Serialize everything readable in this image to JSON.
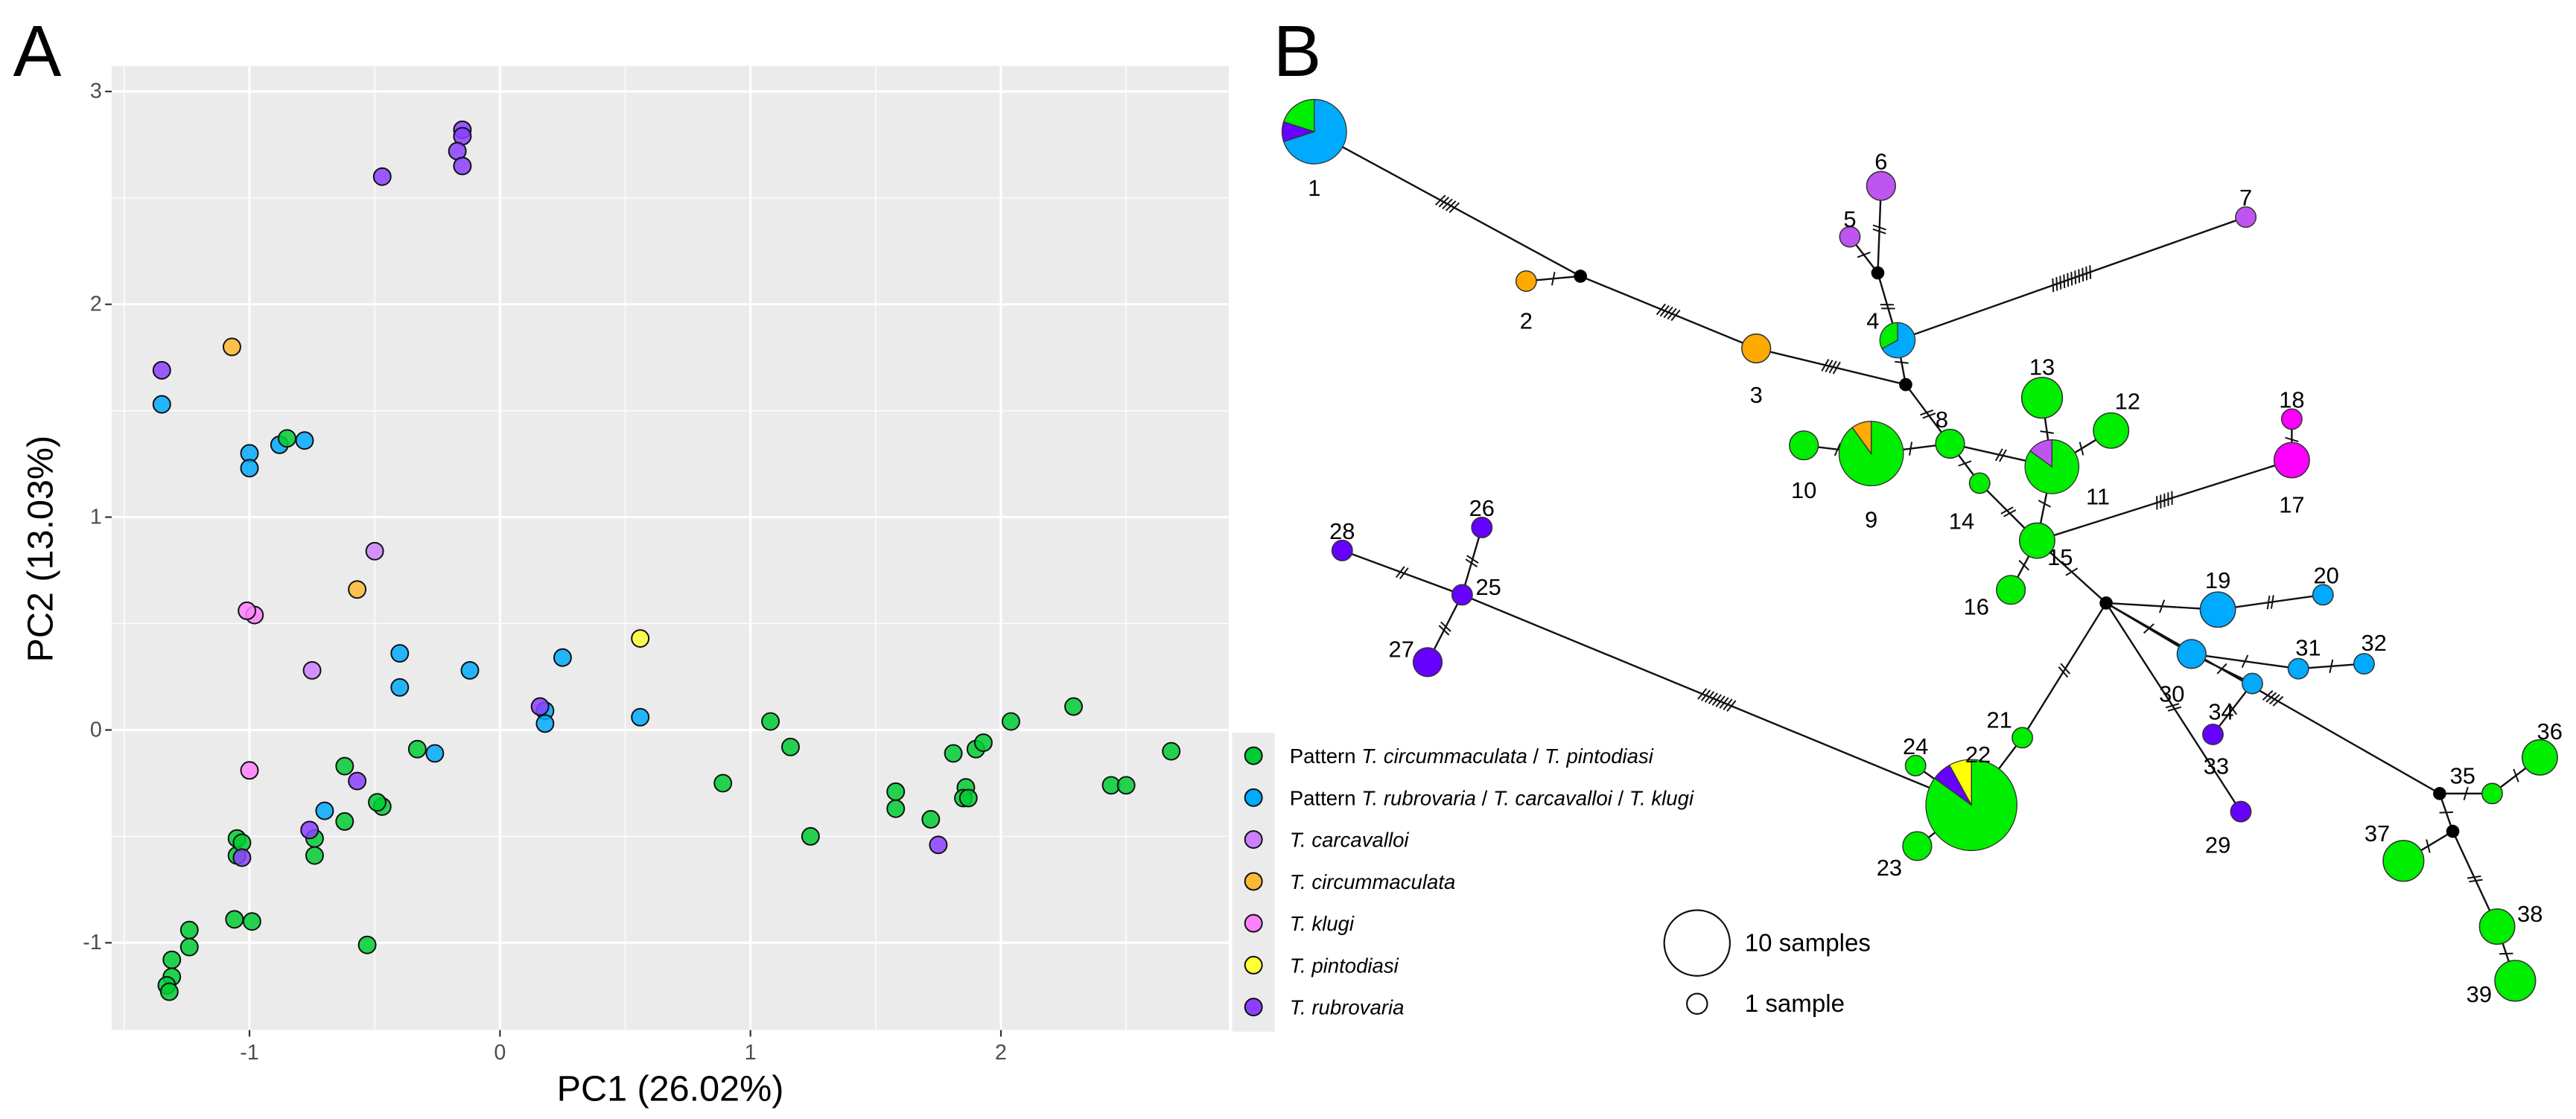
{
  "panels": {
    "a": "A",
    "b": "B"
  },
  "chart_data": [
    {
      "type": "scatter",
      "title": "",
      "xlabel": "PC1 (26.02%)",
      "ylabel": "PC2 (13.03%)",
      "xlim": [
        -1.55,
        2.91
      ],
      "ylim": [
        -1.41,
        3.12
      ],
      "xticks": [
        "-1",
        "0",
        "1",
        "2"
      ],
      "xtick_values": [
        -1,
        0,
        1,
        2
      ],
      "yticks": [
        "-1",
        "0",
        "1",
        "2",
        "3"
      ],
      "ytick_values": [
        -1,
        0,
        1,
        2,
        3
      ],
      "grid": true,
      "legend_position": "right",
      "groups": {
        "pc": {
          "color": "#00cc33",
          "label": [
            {
              "t": "Pattern ",
              "i": false
            },
            {
              "t": "T. circummaculata",
              "i": true
            },
            {
              "t": " / ",
              "i": false
            },
            {
              "t": "T. pintodiasi",
              "i": true
            }
          ]
        },
        "pr": {
          "color": "#00aaff",
          "label": [
            {
              "t": "Pattern ",
              "i": false
            },
            {
              "t": "T. rubrovaria",
              "i": true
            },
            {
              "t": " / ",
              "i": false
            },
            {
              "t": "T. carcavalloi",
              "i": true
            },
            {
              "t": " / ",
              "i": false
            },
            {
              "t": "T. klugi",
              "i": true
            }
          ]
        },
        "car": {
          "color": "#cc80ff",
          "label": [
            {
              "t": "T. carcavalloi",
              "i": true
            }
          ]
        },
        "cir": {
          "color": "#ffb833",
          "label": [
            {
              "t": "T. circummaculata",
              "i": true
            }
          ]
        },
        "klu": {
          "color": "#ff80ff",
          "label": [
            {
              "t": "T. klugi",
              "i": true
            }
          ]
        },
        "pin": {
          "color": "#ffff33",
          "label": [
            {
              "t": "T. pintodiasi",
              "i": true
            }
          ]
        },
        "rub": {
          "color": "#8c40ff",
          "label": [
            {
              "t": "T. rubrovaria",
              "i": true
            }
          ]
        }
      },
      "group_order": [
        "pc",
        "pr",
        "car",
        "cir",
        "klu",
        "pin",
        "rub"
      ],
      "points": [
        {
          "x": -0.15,
          "y": 2.82,
          "g": "rub"
        },
        {
          "x": -0.15,
          "y": 2.79,
          "g": "rub"
        },
        {
          "x": -0.17,
          "y": 2.72,
          "g": "rub"
        },
        {
          "x": -0.15,
          "y": 2.65,
          "g": "rub"
        },
        {
          "x": -0.47,
          "y": 2.6,
          "g": "rub"
        },
        {
          "x": -1.35,
          "y": 1.69,
          "g": "rub"
        },
        {
          "x": -1.35,
          "y": 1.53,
          "g": "pr"
        },
        {
          "x": -1.07,
          "y": 1.8,
          "g": "cir"
        },
        {
          "x": -1.0,
          "y": 1.3,
          "g": "pr"
        },
        {
          "x": -1.0,
          "y": 1.23,
          "g": "pr"
        },
        {
          "x": -0.88,
          "y": 1.34,
          "g": "pr"
        },
        {
          "x": -0.85,
          "y": 1.37,
          "g": "pc"
        },
        {
          "x": -0.78,
          "y": 1.36,
          "g": "pr"
        },
        {
          "x": -0.5,
          "y": 0.84,
          "g": "car"
        },
        {
          "x": -0.57,
          "y": 0.66,
          "g": "cir"
        },
        {
          "x": -0.98,
          "y": 0.54,
          "g": "klu"
        },
        {
          "x": -1.01,
          "y": 0.56,
          "g": "klu"
        },
        {
          "x": -0.75,
          "y": 0.28,
          "g": "car"
        },
        {
          "x": -0.4,
          "y": 0.36,
          "g": "pr"
        },
        {
          "x": -0.4,
          "y": 0.2,
          "g": "pr"
        },
        {
          "x": -0.12,
          "y": 0.28,
          "g": "pr"
        },
        {
          "x": 0.18,
          "y": 0.09,
          "g": "pr"
        },
        {
          "x": 0.18,
          "y": 0.03,
          "g": "pr"
        },
        {
          "x": 0.16,
          "y": 0.11,
          "g": "rub"
        },
        {
          "x": 0.25,
          "y": 0.34,
          "g": "pr"
        },
        {
          "x": 0.56,
          "y": 0.43,
          "g": "pin"
        },
        {
          "x": 0.56,
          "y": 0.06,
          "g": "pr"
        },
        {
          "x": -0.33,
          "y": -0.09,
          "g": "pc"
        },
        {
          "x": -0.26,
          "y": -0.11,
          "g": "pr"
        },
        {
          "x": -0.62,
          "y": -0.17,
          "g": "pc"
        },
        {
          "x": -1.0,
          "y": -0.19,
          "g": "klu"
        },
        {
          "x": -0.57,
          "y": -0.24,
          "g": "rub"
        },
        {
          "x": -0.47,
          "y": -0.36,
          "g": "pc"
        },
        {
          "x": -0.49,
          "y": -0.34,
          "g": "pc"
        },
        {
          "x": -0.7,
          "y": -0.38,
          "g": "pr"
        },
        {
          "x": -0.62,
          "y": -0.43,
          "g": "pc"
        },
        {
          "x": -0.74,
          "y": -0.51,
          "g": "pc"
        },
        {
          "x": -0.74,
          "y": -0.59,
          "g": "pc"
        },
        {
          "x": -0.76,
          "y": -0.47,
          "g": "rub"
        },
        {
          "x": -1.05,
          "y": -0.51,
          "g": "pc"
        },
        {
          "x": -1.05,
          "y": -0.59,
          "g": "pc"
        },
        {
          "x": -1.03,
          "y": -0.53,
          "g": "pc"
        },
        {
          "x": -1.03,
          "y": -0.6,
          "g": "rub"
        },
        {
          "x": -1.06,
          "y": -0.89,
          "g": "pc"
        },
        {
          "x": -0.99,
          "y": -0.9,
          "g": "pc"
        },
        {
          "x": -0.53,
          "y": -1.01,
          "g": "pc"
        },
        {
          "x": -1.24,
          "y": -0.94,
          "g": "pc"
        },
        {
          "x": -1.24,
          "y": -1.02,
          "g": "pc"
        },
        {
          "x": -1.31,
          "y": -1.08,
          "g": "pc"
        },
        {
          "x": -1.31,
          "y": -1.16,
          "g": "pc"
        },
        {
          "x": -1.33,
          "y": -1.2,
          "g": "pc"
        },
        {
          "x": -1.32,
          "y": -1.23,
          "g": "pc"
        },
        {
          "x": 0.89,
          "y": -0.25,
          "g": "pc"
        },
        {
          "x": 1.08,
          "y": 0.04,
          "g": "pc"
        },
        {
          "x": 1.16,
          "y": -0.08,
          "g": "pc"
        },
        {
          "x": 1.24,
          "y": -0.5,
          "g": "pc"
        },
        {
          "x": 1.58,
          "y": -0.29,
          "g": "pc"
        },
        {
          "x": 1.58,
          "y": -0.37,
          "g": "pc"
        },
        {
          "x": 1.72,
          "y": -0.42,
          "g": "pc"
        },
        {
          "x": 1.75,
          "y": -0.54,
          "g": "rub"
        },
        {
          "x": 1.81,
          "y": -0.11,
          "g": "pc"
        },
        {
          "x": 1.86,
          "y": -0.27,
          "g": "pc"
        },
        {
          "x": 1.85,
          "y": -0.32,
          "g": "pc"
        },
        {
          "x": 1.87,
          "y": -0.32,
          "g": "pc"
        },
        {
          "x": 1.9,
          "y": -0.09,
          "g": "pc"
        },
        {
          "x": 1.93,
          "y": -0.06,
          "g": "pc"
        },
        {
          "x": 2.04,
          "y": 0.04,
          "g": "pc"
        },
        {
          "x": 2.29,
          "y": 0.11,
          "g": "pc"
        },
        {
          "x": 2.44,
          "y": -0.26,
          "g": "pc"
        },
        {
          "x": 2.5,
          "y": -0.26,
          "g": "pc"
        },
        {
          "x": 2.68,
          "y": -0.1,
          "g": "pc"
        }
      ]
    },
    {
      "type": "network",
      "title": "",
      "colors": {
        "pc": "#00ee00",
        "pr": "#00aaff",
        "car": "#bf55f0",
        "cir": "#ffaa00",
        "klu": "#ff00ff",
        "pin": "#ffff00",
        "rub": "#6600ff"
      },
      "size_legend": [
        {
          "label": "10 samples",
          "n": 10
        },
        {
          "label": "1 sample",
          "n": 1
        }
      ],
      "haplotypes": [
        {
          "id": "1",
          "n": 10,
          "comp": {
            "pr": 0.7,
            "rub": 0.1,
            "pc": 0.2
          }
        },
        {
          "id": "2",
          "n": 1,
          "comp": {
            "cir": 1
          }
        },
        {
          "id": "3",
          "n": 2,
          "comp": {
            "cir": 1
          }
        },
        {
          "id": "4",
          "n": 3,
          "comp": {
            "pr": 0.67,
            "pc": 0.33
          }
        },
        {
          "id": "5",
          "n": 1,
          "comp": {
            "car": 1
          }
        },
        {
          "id": "6",
          "n": 2,
          "comp": {
            "car": 1
          }
        },
        {
          "id": "7",
          "n": 1,
          "comp": {
            "car": 1
          }
        },
        {
          "id": "8",
          "n": 2,
          "comp": {
            "pc": 1
          }
        },
        {
          "id": "9",
          "n": 10,
          "comp": {
            "pc": 0.9,
            "cir": 0.1
          }
        },
        {
          "id": "10",
          "n": 2,
          "comp": {
            "pc": 1
          }
        },
        {
          "id": "11",
          "n": 7,
          "comp": {
            "pc": 0.85,
            "car": 0.15
          }
        },
        {
          "id": "12",
          "n": 3,
          "comp": {
            "pc": 1
          }
        },
        {
          "id": "13",
          "n": 4,
          "comp": {
            "pc": 1
          }
        },
        {
          "id": "14",
          "n": 1,
          "comp": {
            "pc": 1
          }
        },
        {
          "id": "15",
          "n": 3,
          "comp": {
            "pc": 1
          }
        },
        {
          "id": "16",
          "n": 2,
          "comp": {
            "pc": 1
          }
        },
        {
          "id": "17",
          "n": 3,
          "comp": {
            "klu": 1
          }
        },
        {
          "id": "18",
          "n": 1,
          "comp": {
            "klu": 1
          }
        },
        {
          "id": "19",
          "n": 3,
          "comp": {
            "pr": 1
          }
        },
        {
          "id": "20",
          "n": 1,
          "comp": {
            "pr": 1
          }
        },
        {
          "id": "21",
          "n": 1,
          "comp": {
            "pc": 1
          }
        },
        {
          "id": "22",
          "n": 20,
          "comp": {
            "pc": 0.85,
            "rub": 0.07,
            "pin": 0.08
          }
        },
        {
          "id": "23",
          "n": 2,
          "comp": {
            "pc": 1
          }
        },
        {
          "id": "24",
          "n": 1,
          "comp": {
            "pc": 1
          }
        },
        {
          "id": "25",
          "n": 1,
          "comp": {
            "rub": 1
          }
        },
        {
          "id": "26",
          "n": 1,
          "comp": {
            "rub": 1
          }
        },
        {
          "id": "27",
          "n": 2,
          "comp": {
            "rub": 1
          }
        },
        {
          "id": "28",
          "n": 1,
          "comp": {
            "rub": 1
          }
        },
        {
          "id": "29",
          "n": 1,
          "comp": {
            "rub": 1
          }
        },
        {
          "id": "30",
          "n": 2,
          "comp": {
            "pr": 1
          }
        },
        {
          "id": "31",
          "n": 1,
          "comp": {
            "pr": 1
          }
        },
        {
          "id": "32",
          "n": 1,
          "comp": {
            "pr": 1
          }
        },
        {
          "id": "33",
          "n": 1,
          "comp": {
            "rub": 1
          }
        },
        {
          "id": "34",
          "n": 1,
          "comp": {
            "pr": 1
          }
        },
        {
          "id": "35",
          "n": 1,
          "comp": {
            "pc": 1
          }
        },
        {
          "id": "36",
          "n": 3,
          "comp": {
            "pc": 1
          }
        },
        {
          "id": "37",
          "n": 4,
          "comp": {
            "pc": 1
          }
        },
        {
          "id": "38",
          "n": 3,
          "comp": {
            "pc": 1
          }
        },
        {
          "id": "39",
          "n": 4,
          "comp": {
            "pc": 1
          }
        }
      ],
      "median_vectors": [
        "mv1",
        "mv2",
        "mv3",
        "mv4",
        "mv5",
        "mv6"
      ],
      "edges": [
        [
          "1",
          "mv1",
          5
        ],
        [
          "2",
          "mv1",
          1
        ],
        [
          "mv1",
          "3",
          5
        ],
        [
          "3",
          "mv2",
          4
        ],
        [
          "mv2",
          "4",
          1
        ],
        [
          "4",
          "mv3",
          2
        ],
        [
          "mv3",
          "5",
          1
        ],
        [
          "mv3",
          "6",
          2
        ],
        [
          "4",
          "7",
          11
        ],
        [
          "mv2",
          "8",
          2
        ],
        [
          "8",
          "9",
          1
        ],
        [
          "9",
          "10",
          1
        ],
        [
          "8",
          "11",
          2
        ],
        [
          "8",
          "14",
          1
        ],
        [
          "11",
          "13",
          1
        ],
        [
          "11",
          "12",
          1
        ],
        [
          "11",
          "15",
          1
        ],
        [
          "14",
          "15",
          2
        ],
        [
          "15",
          "17",
          5
        ],
        [
          "17",
          "18",
          1
        ],
        [
          "15",
          "16",
          1
        ],
        [
          "15",
          "mv4",
          1
        ],
        [
          "mv4",
          "19",
          1
        ],
        [
          "19",
          "20",
          2
        ],
        [
          "mv4",
          "30",
          1
        ],
        [
          "30",
          "31",
          1
        ],
        [
          "31",
          "32",
          1
        ],
        [
          "30",
          "34",
          1
        ],
        [
          "34",
          "33",
          1
        ],
        [
          "mv4",
          "29",
          2
        ],
        [
          "mv4",
          "21",
          2
        ],
        [
          "21",
          "22",
          1
        ],
        [
          "22",
          "24",
          0
        ],
        [
          "22",
          "23",
          1
        ],
        [
          "mv4",
          "mv5",
          4
        ],
        [
          "mv5",
          "35",
          1
        ],
        [
          "35",
          "36",
          1
        ],
        [
          "mv5",
          "mv6",
          1
        ],
        [
          "mv6",
          "37",
          1
        ],
        [
          "mv6",
          "38",
          2
        ],
        [
          "38",
          "39",
          1
        ],
        [
          "22",
          "25",
          9
        ],
        [
          "25",
          "26",
          2
        ],
        [
          "25",
          "28",
          2
        ],
        [
          "25",
          "27",
          2
        ]
      ]
    }
  ]
}
